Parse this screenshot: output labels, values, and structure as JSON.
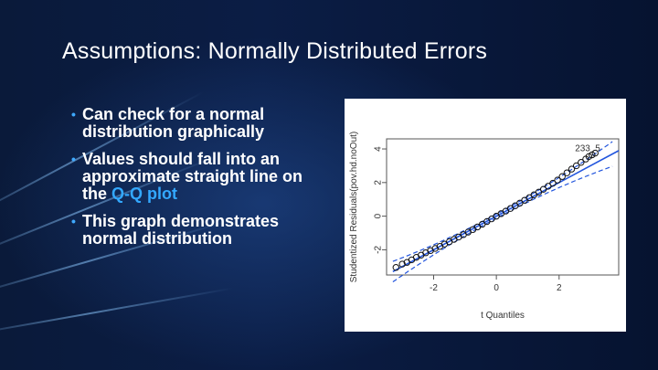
{
  "slide": {
    "title": "Assumptions: Normally Distributed Errors",
    "bullets": [
      {
        "text": "Can check for a normal distribution graphically",
        "highlight": ""
      },
      {
        "text": "Values should fall into an approximate straight line on the ",
        "highlight": "Q-Q plot"
      },
      {
        "text": "This graph demonstrates normal distribution",
        "highlight": ""
      }
    ],
    "colors": {
      "bullet_marker": "#3fa9ff",
      "highlight": "#33a8ff",
      "background": "#0a1a3a"
    }
  },
  "chart_data": {
    "type": "scatter",
    "xlabel": "t Quantiles",
    "ylabel": "Studentized Residuals(pov.hd.noOut)",
    "xlim": [
      -3.5,
      3.9
    ],
    "ylim": [
      -3.5,
      4.6
    ],
    "x_ticks": [
      -2,
      0,
      2
    ],
    "y_ticks": [
      -2,
      0,
      2,
      4
    ],
    "point_labels": [
      "23",
      "3",
      "5"
    ],
    "reference_line": {
      "slope": 1.0,
      "intercept": 0.0,
      "color": "#2255dd"
    },
    "envelope": {
      "color": "#2255dd",
      "style": "dashed"
    },
    "series": [
      {
        "points": [
          [
            -3.2,
            -3.05
          ],
          [
            -3.0,
            -2.85
          ],
          [
            -2.85,
            -2.75
          ],
          [
            -2.7,
            -2.6
          ],
          [
            -2.55,
            -2.45
          ],
          [
            -2.4,
            -2.32
          ],
          [
            -2.25,
            -2.18
          ],
          [
            -2.1,
            -2.05
          ],
          [
            -1.95,
            -1.92
          ],
          [
            -1.8,
            -1.8
          ],
          [
            -1.65,
            -1.66
          ],
          [
            -1.5,
            -1.52
          ],
          [
            -1.35,
            -1.38
          ],
          [
            -1.2,
            -1.24
          ],
          [
            -1.05,
            -1.1
          ],
          [
            -0.9,
            -0.95
          ],
          [
            -0.75,
            -0.8
          ],
          [
            -0.6,
            -0.64
          ],
          [
            -0.45,
            -0.48
          ],
          [
            -0.3,
            -0.32
          ],
          [
            -0.15,
            -0.16
          ],
          [
            0.0,
            0.0
          ],
          [
            0.15,
            0.15
          ],
          [
            0.3,
            0.3
          ],
          [
            0.45,
            0.46
          ],
          [
            0.6,
            0.62
          ],
          [
            0.75,
            0.78
          ],
          [
            0.9,
            0.95
          ],
          [
            1.05,
            1.1
          ],
          [
            1.2,
            1.27
          ],
          [
            1.35,
            1.43
          ],
          [
            1.5,
            1.6
          ],
          [
            1.65,
            1.78
          ],
          [
            1.8,
            1.96
          ],
          [
            1.95,
            2.15
          ],
          [
            2.1,
            2.36
          ],
          [
            2.25,
            2.58
          ],
          [
            2.4,
            2.8
          ],
          [
            2.55,
            3.0
          ],
          [
            2.7,
            3.2
          ],
          [
            2.85,
            3.4
          ],
          [
            2.95,
            3.55
          ],
          [
            3.05,
            3.65
          ],
          [
            3.15,
            3.75
          ]
        ]
      }
    ]
  }
}
